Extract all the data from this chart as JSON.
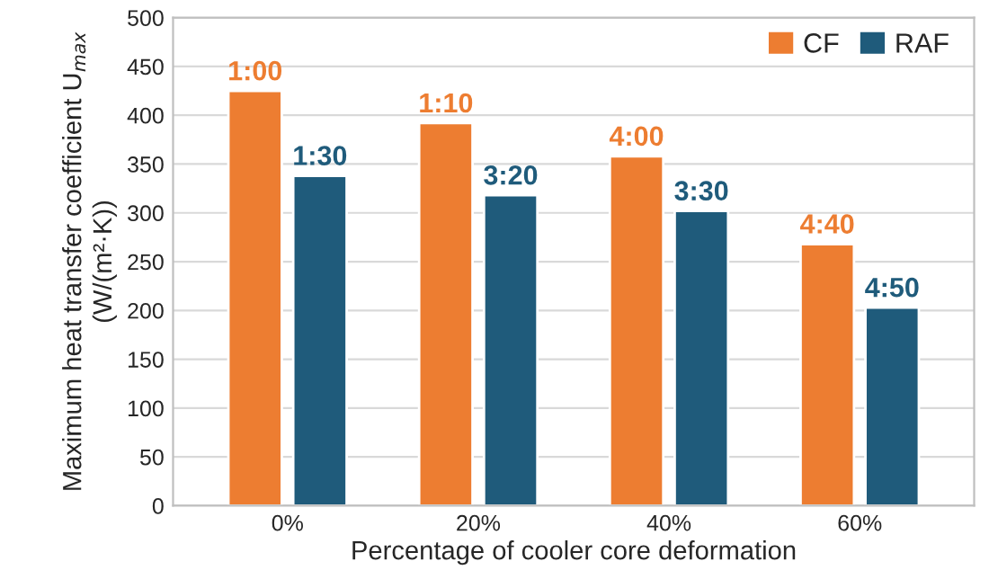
{
  "chart_data": {
    "type": "bar",
    "xlabel": "Percentage of cooler core deformation",
    "ylabel": "Maximum heat transfer coefficient U$_{max}$\n(W/(m²·K))",
    "categories": [
      "0%",
      "20%",
      "40%",
      "60%"
    ],
    "series": [
      {
        "name": "CF",
        "color": "#ed7d31",
        "values": [
          425,
          392,
          358,
          268
        ]
      },
      {
        "name": "RAF",
        "color": "#1f5b7b",
        "values": [
          338,
          318,
          302,
          203
        ]
      }
    ],
    "annotations": [
      {
        "text": "1:00",
        "x": "0%",
        "y": 425
      },
      {
        "text": "1:10",
        "x": "20%",
        "y": 392
      },
      {
        "text": "4:00",
        "x": "40%",
        "y": 358
      },
      {
        "text": "4:40",
        "x": "60%",
        "y": 268
      },
      {
        "text": "1:30",
        "x": "0%",
        "y": 338
      },
      {
        "text": "3:20",
        "x": "20%",
        "y": 318
      },
      {
        "text": "3:30",
        "x": "40%",
        "y": 302
      },
      {
        "text": "4:50",
        "x": "60%",
        "y": 203
      }
    ],
    "ylim": [
      0,
      500
    ],
    "yticks": [
      0,
      50,
      100,
      150,
      200,
      250,
      300,
      350,
      400,
      450,
      500
    ],
    "grid": "y",
    "legend": "top right"
  }
}
